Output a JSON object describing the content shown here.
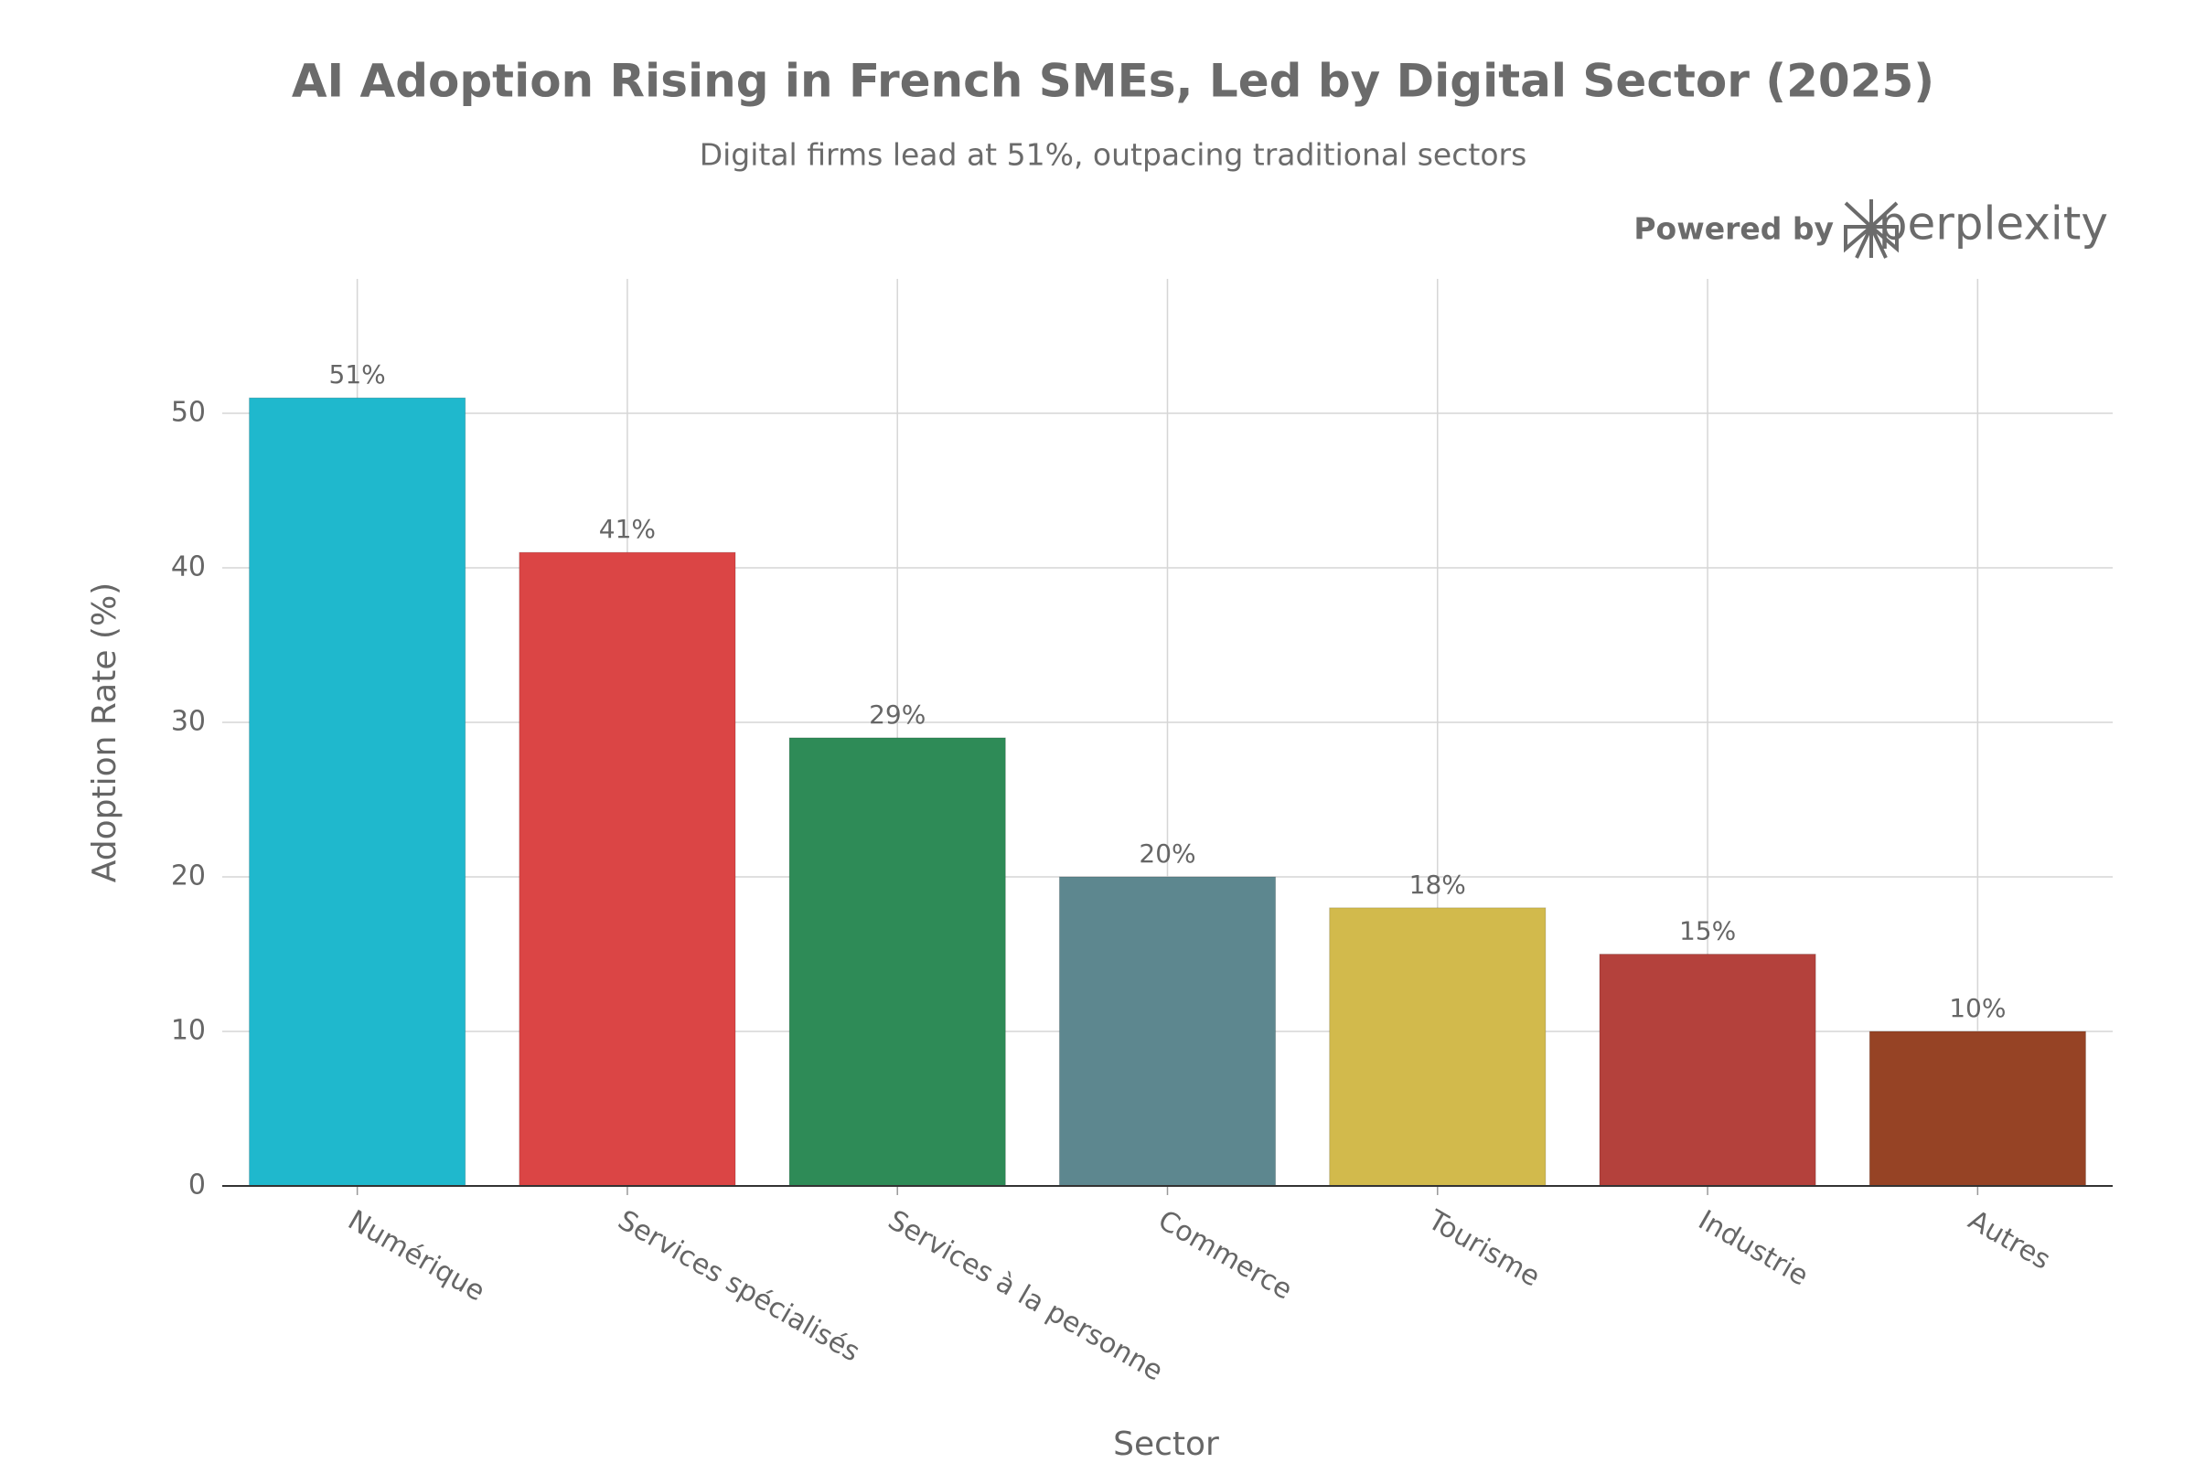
{
  "chart_data": {
    "type": "bar",
    "title": "AI Adoption Rising in French SMEs, Led by Digital Sector (2025)",
    "subtitle": "Digital firms lead at 51%, outpacing traditional sectors",
    "watermark": {
      "prefix": "Powered by",
      "brand": "perplexity"
    },
    "x_label": "Sector",
    "y_label": "Adoption Rate (%)",
    "categories": [
      "Numérique",
      "Services spécialisés",
      "Services à la personne",
      "Commerce",
      "Tourisme",
      "Industrie",
      "Autres"
    ],
    "values": [
      51,
      41,
      29,
      20,
      18,
      15,
      10
    ],
    "value_labels": [
      "51%",
      "41%",
      "29%",
      "20%",
      "18%",
      "15%",
      "10%"
    ],
    "colors": [
      "#1FB8CD",
      "#DB4545",
      "#2E8B57",
      "#5D878F",
      "#D2BA4C",
      "#B4413C",
      "#964325"
    ],
    "ylim": [
      0,
      58.7
    ],
    "yticks": [
      0,
      10,
      20,
      30,
      40,
      50
    ],
    "grid": true
  }
}
